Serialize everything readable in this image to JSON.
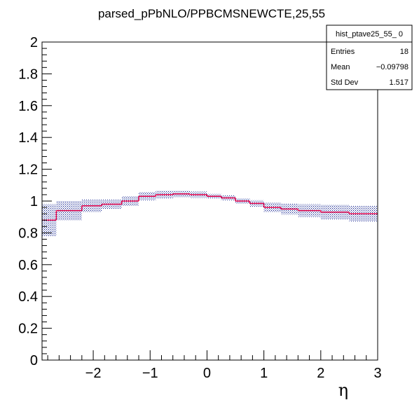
{
  "chart_data": {
    "type": "bar",
    "title": "parsed_pPbNLO/PPBCMSNEWCTE,25,55",
    "xlabel": "η",
    "ylabel": "",
    "xlim": [
      -2.9,
      3.0
    ],
    "ylim": [
      0,
      2
    ],
    "x_ticks": [
      -2,
      -1,
      0,
      1,
      2,
      3
    ],
    "x_tick_labels": [
      "−2",
      "−1",
      "0",
      "1",
      "2",
      "3"
    ],
    "y_ticks": [
      0,
      0.2,
      0.4,
      0.6,
      0.8,
      1,
      1.2,
      1.4,
      1.6,
      1.8,
      2
    ],
    "y_tick_labels": [
      "0",
      "0.2",
      "0.4",
      "0.6",
      "0.8",
      "1",
      "1.2",
      "1.4",
      "1.6",
      "1.8",
      "2"
    ],
    "bins": [
      {
        "x0": -2.9,
        "x1": -2.65,
        "value": 0.88,
        "err": 0.1
      },
      {
        "x0": -2.65,
        "x1": -2.2,
        "value": 0.94,
        "err": 0.06
      },
      {
        "x0": -2.2,
        "x1": -1.85,
        "value": 0.97,
        "err": 0.04
      },
      {
        "x0": -1.85,
        "x1": -1.5,
        "value": 0.98,
        "err": 0.03
      },
      {
        "x0": -1.5,
        "x1": -1.2,
        "value": 1.0,
        "err": 0.03
      },
      {
        "x0": -1.2,
        "x1": -0.9,
        "value": 1.03,
        "err": 0.025
      },
      {
        "x0": -0.9,
        "x1": -0.6,
        "value": 1.04,
        "err": 0.025
      },
      {
        "x0": -0.6,
        "x1": -0.3,
        "value": 1.045,
        "err": 0.02
      },
      {
        "x0": -0.3,
        "x1": 0.0,
        "value": 1.04,
        "err": 0.02
      },
      {
        "x0": 0.0,
        "x1": 0.25,
        "value": 1.03,
        "err": 0.015
      },
      {
        "x0": 0.25,
        "x1": 0.5,
        "value": 1.02,
        "err": 0.015
      },
      {
        "x0": 0.5,
        "x1": 0.75,
        "value": 1.0,
        "err": 0.015
      },
      {
        "x0": 0.75,
        "x1": 1.0,
        "value": 0.985,
        "err": 0.02
      },
      {
        "x0": 1.0,
        "x1": 1.3,
        "value": 0.96,
        "err": 0.03
      },
      {
        "x0": 1.3,
        "x1": 1.6,
        "value": 0.95,
        "err": 0.035
      },
      {
        "x0": 1.6,
        "x1": 2.0,
        "value": 0.94,
        "err": 0.04
      },
      {
        "x0": 2.0,
        "x1": 2.5,
        "value": 0.93,
        "err": 0.045
      },
      {
        "x0": 2.5,
        "x1": 3.0,
        "value": 0.92,
        "err": 0.05
      }
    ],
    "line_color": "#e0004a",
    "band_color": "#0a1a8c",
    "stats_box": {
      "name": "hist_ptave25_55_ 0",
      "rows": [
        {
          "label": "Entries",
          "value": "18"
        },
        {
          "label": "Mean",
          "value": "−0.09798"
        },
        {
          "label": "Std Dev",
          "value": "1.517"
        }
      ]
    }
  }
}
